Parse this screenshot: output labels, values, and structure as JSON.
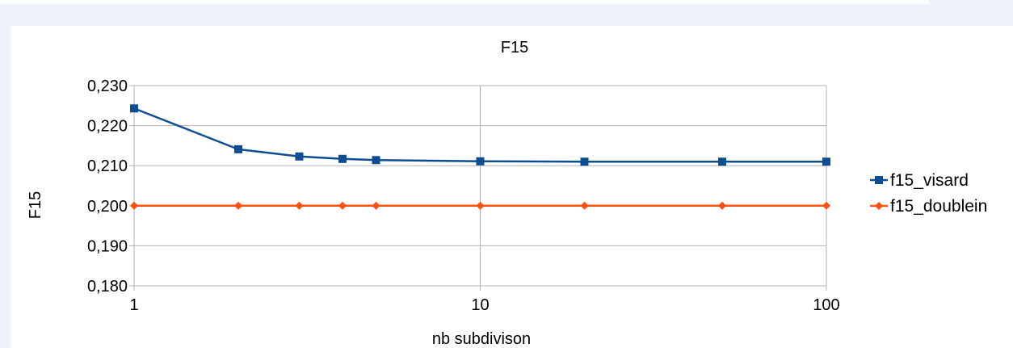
{
  "chart_data": {
    "type": "line",
    "title": "F15",
    "xlabel": "nb subdivison",
    "ylabel": "F15",
    "x_scale": "log",
    "xlim": [
      1,
      100
    ],
    "ylim": [
      0.18,
      0.23
    ],
    "x_ticks": [
      1,
      10,
      100
    ],
    "x_tick_labels": [
      "1",
      "10",
      "100"
    ],
    "y_ticks": [
      0.18,
      0.19,
      0.2,
      0.21,
      0.22,
      0.23
    ],
    "y_tick_labels": [
      "0,180",
      "0,190",
      "0,200",
      "0,210",
      "0,220",
      "0,230"
    ],
    "grid": true,
    "legend_position": "right",
    "x": [
      1,
      2,
      3,
      4,
      5,
      10,
      20,
      50,
      100
    ],
    "series": [
      {
        "name": "f15_visard",
        "color": "#0e4d92",
        "marker": "square",
        "values": [
          0.2243,
          0.2141,
          0.2123,
          0.2117,
          0.2114,
          0.2111,
          0.211,
          0.211,
          0.211
        ]
      },
      {
        "name": "f15_doublein",
        "color": "#ff4f10",
        "marker": "diamond",
        "values": [
          0.2,
          0.2,
          0.2,
          0.2,
          0.2,
          0.2,
          0.2,
          0.2,
          0.2
        ]
      }
    ]
  }
}
